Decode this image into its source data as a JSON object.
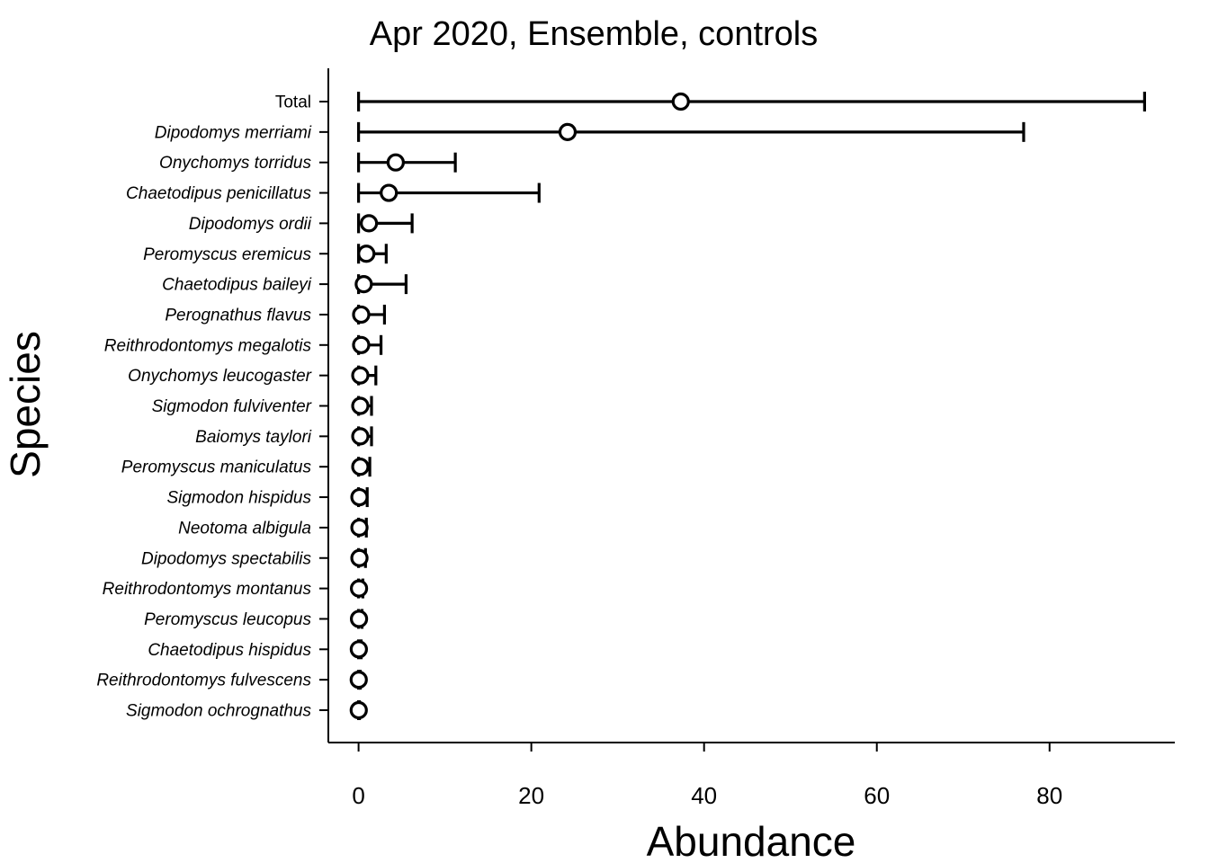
{
  "chart_data": {
    "type": "scatter",
    "title": "Apr 2020, Ensemble, controls",
    "xlabel": "Abundance",
    "ylabel": "Species",
    "xlim": [
      -3.5,
      94.5
    ],
    "xticks": [
      0,
      20,
      40,
      60,
      80
    ],
    "grid": false,
    "series": [
      {
        "name": "Abundance",
        "categories": [
          "Total",
          "Dipodomys merriami",
          "Onychomys torridus",
          "Chaetodipus penicillatus",
          "Dipodomys ordii",
          "Peromyscus eremicus",
          "Chaetodipus baileyi",
          "Perognathus flavus",
          "Reithrodontomys megalotis",
          "Onychomys leucogaster",
          "Sigmodon fulviventer",
          "Baiomys taylori",
          "Peromyscus maniculatus",
          "Sigmodon hispidus",
          "Neotoma albigula",
          "Dipodomys spectabilis",
          "Reithrodontomys montanus",
          "Peromyscus leucopus",
          "Chaetodipus hispidus",
          "Reithrodontomys fulvescens",
          "Sigmodon ochrognathus"
        ],
        "italic": [
          false,
          true,
          true,
          true,
          true,
          true,
          true,
          true,
          true,
          true,
          true,
          true,
          true,
          true,
          true,
          true,
          true,
          true,
          true,
          true,
          true
        ],
        "estimate": [
          37.3,
          24.2,
          4.3,
          3.5,
          1.2,
          0.9,
          0.6,
          0.3,
          0.3,
          0.2,
          0.2,
          0.2,
          0.2,
          0.1,
          0.1,
          0.1,
          0.05,
          0.05,
          0.03,
          0.02,
          0.02
        ],
        "lower": [
          0,
          0,
          0,
          0,
          0,
          0,
          0,
          0,
          0,
          0,
          0,
          0,
          0,
          0,
          0,
          0,
          0,
          0,
          0,
          0,
          0
        ],
        "upper": [
          91,
          77,
          11.2,
          20.9,
          6.2,
          3.2,
          5.5,
          3,
          2.6,
          2,
          1.5,
          1.5,
          1.3,
          1,
          0.9,
          0.8,
          0.5,
          0.4,
          0.3,
          0.2,
          0.1
        ]
      }
    ]
  }
}
